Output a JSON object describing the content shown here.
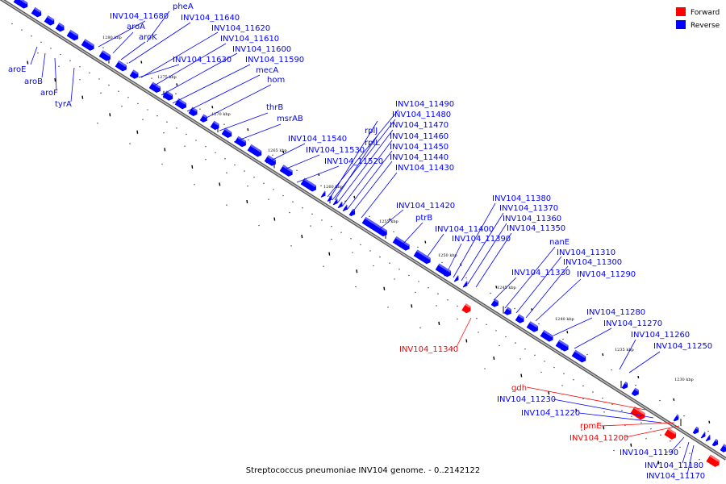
{
  "caption": "Streptococcus pneumoniae INV104 genome. - 0..2142122",
  "legend": [
    {
      "label": "Forward",
      "color": "#ff0000"
    },
    {
      "label": "Reverse",
      "color": "#0000ff"
    }
  ],
  "colors": {
    "forward": "#ff0000",
    "reverse": "#0000ff",
    "backbone": "#888888"
  },
  "ticks": [
    "1280 kbp",
    "1275 kbp",
    "1270 kbp",
    "1265 kbp",
    "1260 kbp",
    "1255 kbp",
    "1250 kbp",
    "1245 kbp",
    "1240 kbp",
    "1235 kbp",
    "1230 kbp"
  ],
  "labels": [
    {
      "text": "pheA",
      "strand": "reverse"
    },
    {
      "text": "INV104_11680",
      "strand": "reverse"
    },
    {
      "text": "INV104_11640",
      "strand": "reverse"
    },
    {
      "text": "aroA",
      "strand": "reverse"
    },
    {
      "text": "INV104_11620",
      "strand": "reverse"
    },
    {
      "text": "aroK",
      "strand": "reverse"
    },
    {
      "text": "INV104_11610",
      "strand": "reverse"
    },
    {
      "text": "INV104_11600",
      "strand": "reverse"
    },
    {
      "text": "INV104_11630",
      "strand": "reverse"
    },
    {
      "text": "INV104_11590",
      "strand": "reverse"
    },
    {
      "text": "mecA",
      "strand": "reverse"
    },
    {
      "text": "hom",
      "strand": "reverse"
    },
    {
      "text": "thrB",
      "strand": "reverse"
    },
    {
      "text": "msrAB",
      "strand": "reverse"
    },
    {
      "text": "INV104_11540",
      "strand": "reverse"
    },
    {
      "text": "INV104_11530",
      "strand": "reverse"
    },
    {
      "text": "INV104_11520",
      "strand": "reverse"
    },
    {
      "text": "INV104_11490",
      "strand": "reverse"
    },
    {
      "text": "INV104_11480",
      "strand": "reverse"
    },
    {
      "text": "INV104_11470",
      "strand": "reverse"
    },
    {
      "text": "INV104_11460",
      "strand": "reverse"
    },
    {
      "text": "INV104_11450",
      "strand": "reverse"
    },
    {
      "text": "INV104_11440",
      "strand": "reverse"
    },
    {
      "text": "INV104_11430",
      "strand": "reverse"
    },
    {
      "text": "rplJ",
      "strand": "reverse"
    },
    {
      "text": "rplL",
      "strand": "reverse"
    },
    {
      "text": "INV104_11420",
      "strand": "reverse"
    },
    {
      "text": "ptrB",
      "strand": "reverse"
    },
    {
      "text": "INV104_11400",
      "strand": "reverse"
    },
    {
      "text": "INV104_11390",
      "strand": "reverse"
    },
    {
      "text": "INV104_11380",
      "strand": "reverse"
    },
    {
      "text": "INV104_11370",
      "strand": "reverse"
    },
    {
      "text": "INV104_11360",
      "strand": "reverse"
    },
    {
      "text": "INV104_11350",
      "strand": "reverse"
    },
    {
      "text": "nanE",
      "strand": "reverse"
    },
    {
      "text": "INV104_11310",
      "strand": "reverse"
    },
    {
      "text": "INV104_11300",
      "strand": "reverse"
    },
    {
      "text": "INV104_11330",
      "strand": "reverse"
    },
    {
      "text": "INV104_11290",
      "strand": "reverse"
    },
    {
      "text": "INV104_11280",
      "strand": "reverse"
    },
    {
      "text": "INV104_11270",
      "strand": "reverse"
    },
    {
      "text": "INV104_11260",
      "strand": "reverse"
    },
    {
      "text": "INV104_11250",
      "strand": "reverse"
    },
    {
      "text": "INV104_11340",
      "strand": "forward"
    },
    {
      "text": "gdh",
      "strand": "forward"
    },
    {
      "text": "INV104_11230",
      "strand": "reverse"
    },
    {
      "text": "INV104_11220",
      "strand": "reverse"
    },
    {
      "text": "rpmE",
      "strand": "forward"
    },
    {
      "text": "INV104_11200",
      "strand": "forward"
    },
    {
      "text": "INV104_11190",
      "strand": "reverse"
    },
    {
      "text": "INV104_11180",
      "strand": "reverse"
    },
    {
      "text": "INV104_11170",
      "strand": "reverse"
    },
    {
      "text": "aroE",
      "strand": "reverse"
    },
    {
      "text": "aroB",
      "strand": "reverse"
    },
    {
      "text": "aroF",
      "strand": "reverse"
    },
    {
      "text": "tyrA",
      "strand": "reverse"
    }
  ]
}
